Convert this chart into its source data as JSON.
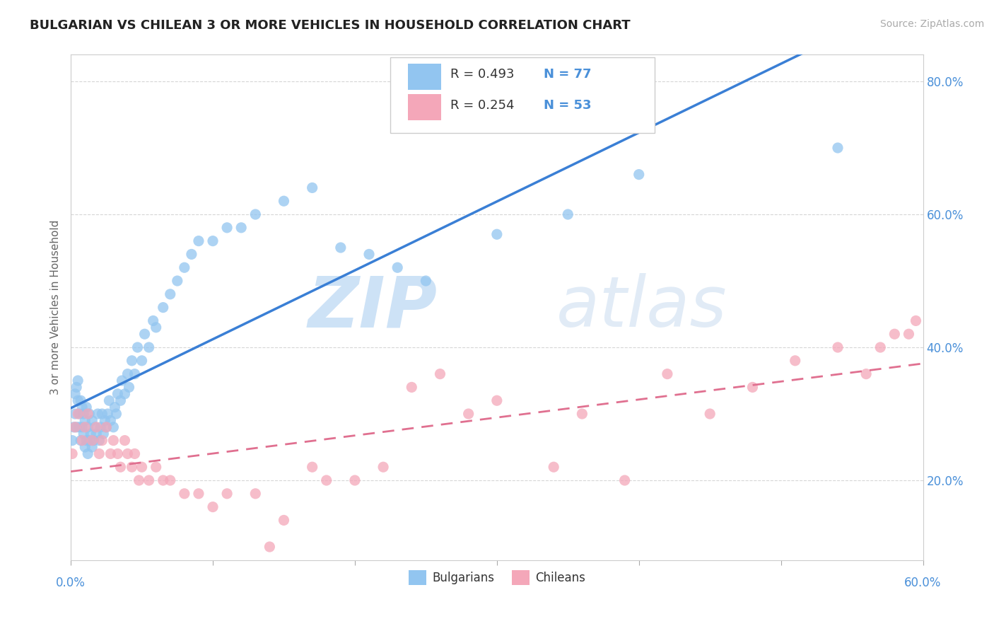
{
  "title": "BULGARIAN VS CHILEAN 3 OR MORE VEHICLES IN HOUSEHOLD CORRELATION CHART",
  "source": "Source: ZipAtlas.com",
  "ylabel": "3 or more Vehicles in Household",
  "xlim": [
    0.0,
    0.6
  ],
  "ylim": [
    0.08,
    0.84
  ],
  "yticks": [
    0.2,
    0.4,
    0.6,
    0.8
  ],
  "yticklabels": [
    "20.0%",
    "40.0%",
    "60.0%",
    "80.0%"
  ],
  "xtick_left_label": "0.0%",
  "xtick_right_label": "60.0%",
  "bulgarian_color": "#92c5f0",
  "chilean_color": "#f4a7b9",
  "regression_blue": "#3a7fd5",
  "regression_pink": "#e07090",
  "watermark_zip": "ZIP",
  "watermark_atlas": "atlas",
  "legend_text": [
    [
      "R = 0.493",
      "N = 77"
    ],
    [
      "R = 0.254",
      "N = 53"
    ]
  ],
  "legend_label_blue": "Bulgarians",
  "legend_label_pink": "Chileans",
  "bulgarian_x": [
    0.001,
    0.002,
    0.003,
    0.003,
    0.004,
    0.004,
    0.005,
    0.005,
    0.006,
    0.006,
    0.007,
    0.007,
    0.008,
    0.008,
    0.009,
    0.009,
    0.01,
    0.01,
    0.011,
    0.011,
    0.012,
    0.012,
    0.013,
    0.013,
    0.014,
    0.015,
    0.015,
    0.016,
    0.017,
    0.018,
    0.019,
    0.02,
    0.021,
    0.022,
    0.023,
    0.024,
    0.025,
    0.026,
    0.027,
    0.028,
    0.03,
    0.031,
    0.032,
    0.033,
    0.035,
    0.036,
    0.038,
    0.04,
    0.041,
    0.043,
    0.045,
    0.047,
    0.05,
    0.052,
    0.055,
    0.058,
    0.06,
    0.065,
    0.07,
    0.075,
    0.08,
    0.085,
    0.09,
    0.1,
    0.11,
    0.12,
    0.13,
    0.15,
    0.17,
    0.19,
    0.21,
    0.23,
    0.25,
    0.3,
    0.35,
    0.4,
    0.54
  ],
  "bulgarian_y": [
    0.26,
    0.28,
    0.3,
    0.33,
    0.28,
    0.34,
    0.32,
    0.35,
    0.28,
    0.3,
    0.26,
    0.32,
    0.28,
    0.31,
    0.27,
    0.3,
    0.25,
    0.29,
    0.26,
    0.31,
    0.24,
    0.28,
    0.26,
    0.3,
    0.27,
    0.25,
    0.29,
    0.26,
    0.28,
    0.27,
    0.3,
    0.26,
    0.28,
    0.3,
    0.27,
    0.29,
    0.28,
    0.3,
    0.32,
    0.29,
    0.28,
    0.31,
    0.3,
    0.33,
    0.32,
    0.35,
    0.33,
    0.36,
    0.34,
    0.38,
    0.36,
    0.4,
    0.38,
    0.42,
    0.4,
    0.44,
    0.43,
    0.46,
    0.48,
    0.5,
    0.52,
    0.54,
    0.56,
    0.56,
    0.58,
    0.58,
    0.6,
    0.62,
    0.64,
    0.55,
    0.54,
    0.52,
    0.5,
    0.57,
    0.6,
    0.66,
    0.7
  ],
  "chilean_x": [
    0.001,
    0.003,
    0.005,
    0.008,
    0.01,
    0.012,
    0.015,
    0.018,
    0.02,
    0.022,
    0.025,
    0.028,
    0.03,
    0.033,
    0.035,
    0.038,
    0.04,
    0.043,
    0.045,
    0.048,
    0.05,
    0.055,
    0.06,
    0.065,
    0.07,
    0.08,
    0.09,
    0.1,
    0.11,
    0.13,
    0.14,
    0.15,
    0.17,
    0.18,
    0.2,
    0.22,
    0.24,
    0.26,
    0.28,
    0.3,
    0.34,
    0.36,
    0.39,
    0.42,
    0.45,
    0.48,
    0.51,
    0.54,
    0.56,
    0.57,
    0.58,
    0.59,
    0.595
  ],
  "chilean_y": [
    0.24,
    0.28,
    0.3,
    0.26,
    0.28,
    0.3,
    0.26,
    0.28,
    0.24,
    0.26,
    0.28,
    0.24,
    0.26,
    0.24,
    0.22,
    0.26,
    0.24,
    0.22,
    0.24,
    0.2,
    0.22,
    0.2,
    0.22,
    0.2,
    0.2,
    0.18,
    0.18,
    0.16,
    0.18,
    0.18,
    0.1,
    0.14,
    0.22,
    0.2,
    0.2,
    0.22,
    0.34,
    0.36,
    0.3,
    0.32,
    0.22,
    0.3,
    0.2,
    0.36,
    0.3,
    0.34,
    0.38,
    0.4,
    0.36,
    0.4,
    0.42,
    0.42,
    0.44
  ]
}
